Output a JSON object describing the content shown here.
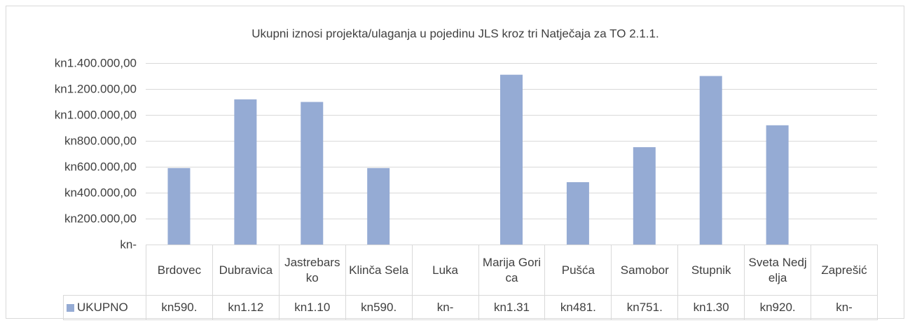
{
  "chart_data": {
    "type": "bar",
    "title": "Ukupni iznosi projekta/ulaganja u pojedinu JLS kroz tri Natječaja za TO 2.1.1.",
    "categories": [
      "Brdovec",
      "Dubravica",
      "Jastrebarsko",
      "Klinča Sela",
      "Luka",
      "Marija Gorica",
      "Pušća",
      "Samobor",
      "Stupnik",
      "Sveta Nedjelja",
      "Zaprešić"
    ],
    "series": [
      {
        "name": "UKUPNO",
        "color": "#95abd4",
        "values": [
          590000,
          1120000,
          1100000,
          590000,
          0,
          1310000,
          481000,
          751000,
          1300000,
          920000,
          0
        ],
        "value_labels": [
          "kn590.",
          "kn1.12",
          "kn1.10",
          "kn590.",
          "kn-",
          "kn1.31",
          "kn481.",
          "kn751.",
          "kn1.30",
          "kn920.",
          "kn-"
        ]
      }
    ],
    "ylim": [
      0,
      1400000
    ],
    "yticks": [
      {
        "value": 0,
        "label": "kn-"
      },
      {
        "value": 200000,
        "label": "kn200.000,00"
      },
      {
        "value": 400000,
        "label": "kn400.000,00"
      },
      {
        "value": 600000,
        "label": "kn600.000,00"
      },
      {
        "value": 800000,
        "label": "kn800.000,00"
      },
      {
        "value": 1000000,
        "label": "kn1.000.000,00"
      },
      {
        "value": 1200000,
        "label": "kn1.200.000,00"
      },
      {
        "value": 1400000,
        "label": "kn1.400.000,00"
      }
    ],
    "grid": true
  }
}
